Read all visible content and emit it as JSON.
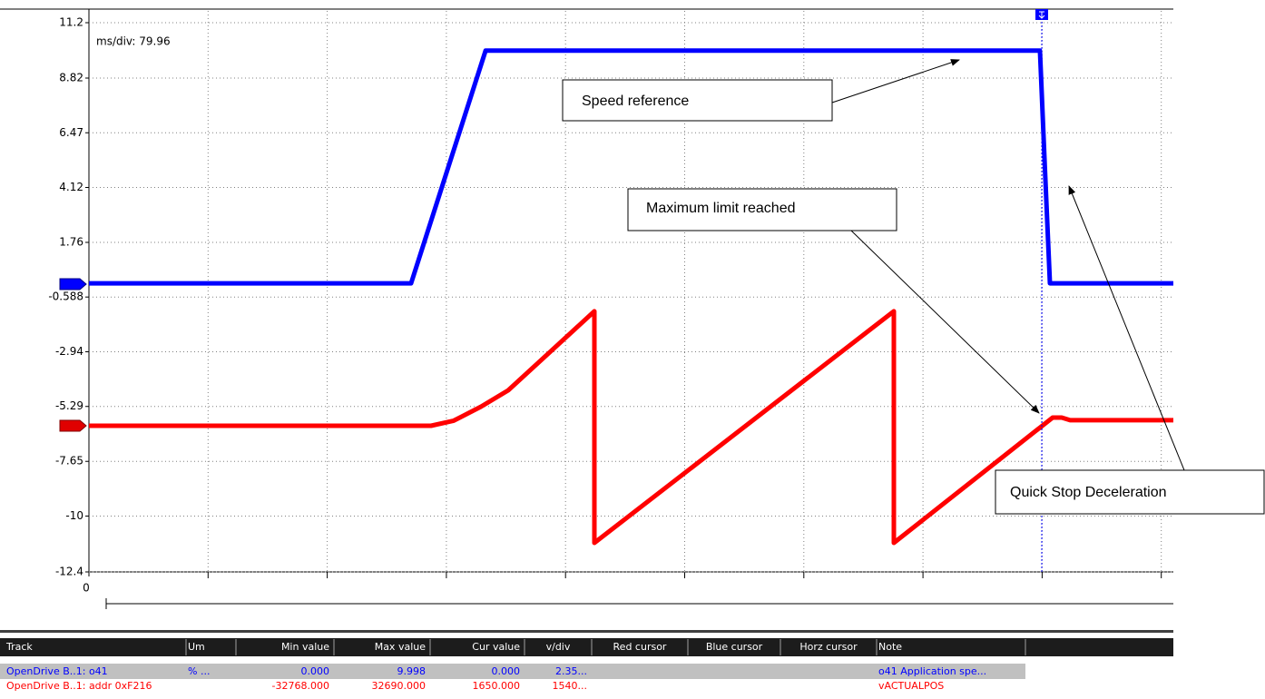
{
  "chart_data": {
    "type": "line",
    "subtitle": "ms/div: 79.96",
    "annotations": [
      "Speed reference",
      "Maximum limit reached",
      "Quick Stop Deceleration"
    ],
    "xlim": [
      0,
      729.4
    ],
    "xticks": [
      0
    ],
    "ylim": [
      -12.4,
      11.2
    ],
    "yticks": [
      11.2,
      8.82,
      6.47,
      4.12,
      1.76,
      -0.588,
      -2.94,
      -5.29,
      -7.65,
      -10,
      -12.4
    ],
    "grid": true,
    "series": [
      {
        "color": "#0000ff",
        "x": [
          0,
          216.7,
          266.8,
          639.7,
          643,
          646.4,
          729.4
        ],
        "values": [
          0,
          0,
          9.998,
          9.998,
          5,
          0,
          0
        ]
      },
      {
        "color": "#ff0000",
        "x": [
          0,
          230.1,
          245.4,
          263.7,
          282,
          340,
          340,
          541.4,
          541.4,
          648.2,
          654.3,
          660,
          729.4
        ],
        "values": [
          -6.12,
          -6.12,
          -5.9,
          -5.3,
          -4.6,
          -1.2,
          -11.15,
          -1.2,
          -11.15,
          -5.77,
          -5.77,
          -5.88,
          -5.88
        ]
      }
    ]
  },
  "table": {
    "columns": [
      "Track",
      "Um",
      "Min value",
      "Max value",
      "Cur value",
      "v/div",
      "Red cursor",
      "Blue cursor",
      "Horz cursor",
      "Note"
    ],
    "rows": [
      [
        "OpenDrive B..1: o41",
        "% ...",
        "0.000",
        "9.998",
        "0.000",
        "2.35...",
        null,
        null,
        null,
        "o41 Application spe..."
      ],
      [
        "OpenDrive B..1: addr 0xF216",
        null,
        "-32768.000",
        "32690.000",
        "1650.000",
        "1540...",
        null,
        null,
        null,
        "vACTUALPOS"
      ]
    ],
    "row_colors": [
      "#0000ff",
      "#ff0000"
    ]
  }
}
